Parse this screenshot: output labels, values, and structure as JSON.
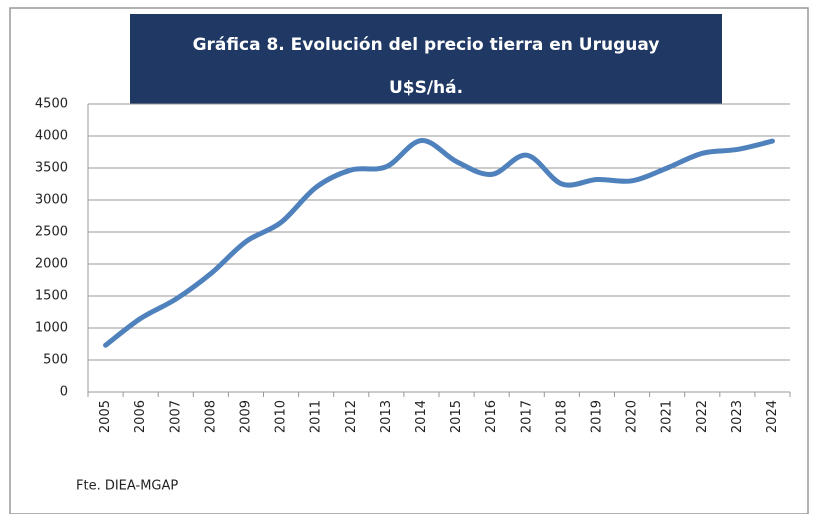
{
  "chart_data": {
    "type": "line",
    "title": "Gráfica 8. Evolución del precio tierra en Uruguay",
    "subtitle": "U$S/há.",
    "source": "Fte. DIEA-MGAP",
    "categories": [
      "2005",
      "2006",
      "2007",
      "2008",
      "2009",
      "2010",
      "2011",
      "2012",
      "2013",
      "2014",
      "2015",
      "2016",
      "2017",
      "2018",
      "2019",
      "2020",
      "2021",
      "2022",
      "2023",
      "2024"
    ],
    "series": [
      {
        "name": "Precio tierra",
        "color": "#4f81bd",
        "values": [
          730,
          1150,
          1450,
          1850,
          2350,
          2650,
          3200,
          3470,
          3520,
          3930,
          3600,
          3400,
          3700,
          3250,
          3320,
          3300,
          3500,
          3730,
          3790,
          3920
        ]
      }
    ],
    "ylim": [
      0,
      4500
    ],
    "yticks": [
      0,
      500,
      1000,
      1500,
      2000,
      2500,
      3000,
      3500,
      4000,
      4500
    ],
    "grid": true
  }
}
